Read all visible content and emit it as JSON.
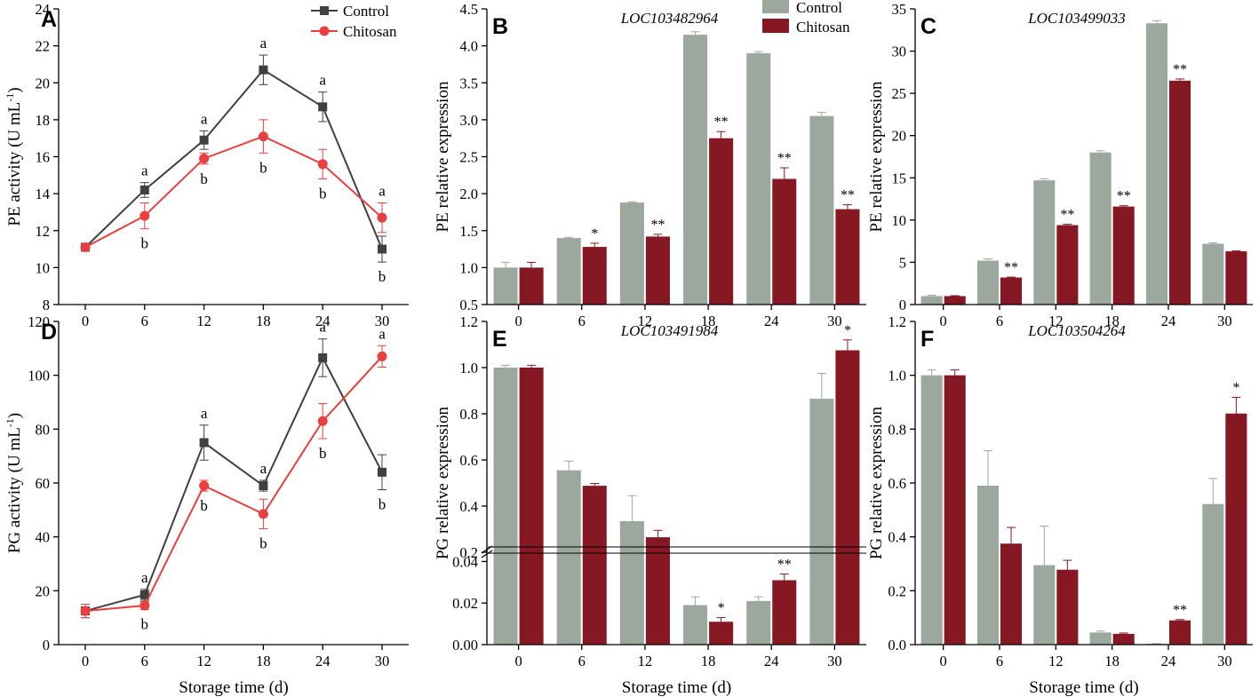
{
  "colors": {
    "control_line": "#404040",
    "chitosan_line": "#e8403f",
    "control_bar": "#9ca89e",
    "chitosan_bar": "#861823",
    "axis": "#000000"
  },
  "chart_data": [
    {
      "id": "A",
      "letter": "A",
      "type": "line",
      "title": "",
      "xlabel": "",
      "ylabel": "PE activity (U mL",
      "ylabel_sup": "-1",
      "ylabel_tail": ")",
      "x": [
        0,
        6,
        12,
        18,
        24,
        30
      ],
      "xticks": [
        "0",
        "6",
        "12",
        "18",
        "24",
        "30"
      ],
      "ylim": [
        8,
        24
      ],
      "yticks": [
        "8",
        "10",
        "12",
        "14",
        "16",
        "18",
        "20",
        "22",
        "24"
      ],
      "legend": {
        "position": "top-right",
        "entries": [
          "Control",
          "Chitosan"
        ]
      },
      "series": [
        {
          "name": "Control",
          "marker": "square",
          "values": [
            11.1,
            14.2,
            16.9,
            20.7,
            18.7,
            11.0
          ],
          "errors": [
            0.2,
            0.4,
            0.5,
            0.8,
            0.8,
            0.7
          ],
          "letters": [
            "",
            "a",
            "a",
            "a",
            "a",
            "b"
          ],
          "letter_pos": [
            "",
            "above",
            "above",
            "above",
            "above",
            "below"
          ]
        },
        {
          "name": "Chitosan",
          "marker": "circle",
          "values": [
            11.1,
            12.8,
            15.9,
            17.1,
            15.6,
            12.7
          ],
          "errors": [
            0.2,
            0.7,
            0.3,
            0.9,
            0.8,
            0.8
          ],
          "letters": [
            "",
            "b",
            "b",
            "b",
            "b",
            "a"
          ],
          "letter_pos": [
            "",
            "below",
            "below",
            "below",
            "below",
            "above"
          ]
        }
      ]
    },
    {
      "id": "B",
      "letter": "B",
      "type": "bar",
      "title": "LOC103482964",
      "xlabel": "",
      "ylabel": "PE relative expression",
      "categories": [
        "0",
        "6",
        "12",
        "18",
        "24",
        "30"
      ],
      "ylim": [
        0.5,
        4.5
      ],
      "yticks": [
        "0.5",
        "1.0",
        "1.5",
        "2.0",
        "2.5",
        "3.0",
        "3.5",
        "4.0",
        "4.5"
      ],
      "legend": {
        "position": "top-right",
        "entries": [
          "Control",
          "Chitosan"
        ]
      },
      "series": [
        {
          "name": "Control",
          "values": [
            1.0,
            1.4,
            1.88,
            4.15,
            3.9,
            3.05
          ],
          "errors": [
            0.07,
            0.01,
            0.01,
            0.04,
            0.02,
            0.05
          ]
        },
        {
          "name": "Chitosan",
          "values": [
            1.0,
            1.28,
            1.42,
            2.75,
            2.2,
            1.79
          ],
          "errors": [
            0.07,
            0.05,
            0.03,
            0.09,
            0.15,
            0.06
          ],
          "marks": [
            "",
            "*",
            "**",
            "**",
            "**",
            "**"
          ]
        }
      ]
    },
    {
      "id": "C",
      "letter": "C",
      "type": "bar",
      "title": "LOC103499033",
      "xlabel": "",
      "ylabel": "PE relative expression",
      "categories": [
        "0",
        "6",
        "12",
        "18",
        "24",
        "30"
      ],
      "ylim": [
        0,
        35
      ],
      "yticks": [
        "0",
        "5",
        "10",
        "15",
        "20",
        "25",
        "30",
        "35"
      ],
      "series": [
        {
          "name": "Control",
          "values": [
            1.0,
            5.2,
            14.7,
            18.0,
            33.3,
            7.2
          ],
          "errors": [
            0.1,
            0.2,
            0.2,
            0.2,
            0.3,
            0.1
          ]
        },
        {
          "name": "Chitosan",
          "values": [
            1.0,
            3.2,
            9.4,
            11.6,
            26.5,
            6.3
          ],
          "errors": [
            0.05,
            0.05,
            0.1,
            0.1,
            0.2,
            0.05
          ],
          "marks": [
            "",
            "**",
            "**",
            "**",
            "**",
            ""
          ]
        }
      ]
    },
    {
      "id": "D",
      "letter": "D",
      "type": "line",
      "title": "",
      "xlabel": "Storage time (d)",
      "ylabel": "PG activity (U mL",
      "ylabel_sup": "-1",
      "ylabel_tail": ")",
      "x": [
        0,
        6,
        12,
        18,
        24,
        30
      ],
      "xticks": [
        "0",
        "6",
        "12",
        "18",
        "24",
        "30"
      ],
      "ylim": [
        0,
        120
      ],
      "yticks": [
        "0",
        "20",
        "40",
        "60",
        "80",
        "100",
        "120"
      ],
      "series": [
        {
          "name": "Control",
          "marker": "square",
          "values": [
            12.5,
            18.5,
            75.0,
            59.0,
            106.5,
            64.0
          ],
          "errors": [
            2.5,
            2.0,
            6.5,
            2.0,
            7.0,
            6.5
          ],
          "letters": [
            "",
            "a",
            "a",
            "a",
            "a",
            "b"
          ],
          "letter_pos": [
            "",
            "above",
            "above",
            "above",
            "above",
            "below"
          ]
        },
        {
          "name": "Chitosan",
          "marker": "circle",
          "values": [
            12.5,
            14.5,
            59.0,
            48.5,
            83.0,
            107.0
          ],
          "errors": [
            2.5,
            1.5,
            2.0,
            5.5,
            6.5,
            4.0
          ],
          "letters": [
            "",
            "b",
            "b",
            "b",
            "b",
            "a"
          ],
          "letter_pos": [
            "",
            "below",
            "below",
            "below",
            "below",
            "above"
          ]
        }
      ]
    },
    {
      "id": "E",
      "letter": "E",
      "type": "bar",
      "title": "LOC103491984",
      "xlabel": "Storage time (d)",
      "ylabel": "PG relative expression",
      "categories": [
        "0",
        "6",
        "12",
        "18",
        "24",
        "30"
      ],
      "axis_break": {
        "lower_range": [
          0,
          0.05
        ],
        "upper_range": [
          0.2,
          1.2
        ]
      },
      "yticks_lower": [
        "0.00",
        "0.02",
        "0.04"
      ],
      "yticks_upper": [
        "0.2",
        "0.4",
        "0.6",
        "0.8",
        "1.0",
        "1.2"
      ],
      "series": [
        {
          "name": "Control",
          "values": [
            1.0,
            0.555,
            0.335,
            0.019,
            0.021,
            0.865
          ],
          "errors": [
            0.01,
            0.04,
            0.11,
            0.004,
            0.002,
            0.11
          ]
        },
        {
          "name": "Chitosan",
          "values": [
            1.0,
            0.488,
            0.265,
            0.011,
            0.031,
            1.075
          ],
          "errors": [
            0.01,
            0.01,
            0.03,
            0.002,
            0.003,
            0.045
          ],
          "marks": [
            "",
            "",
            "",
            "*",
            "**",
            "*"
          ]
        }
      ]
    },
    {
      "id": "F",
      "letter": "F",
      "type": "bar",
      "title": "LOC103504264",
      "xlabel": "Storage time (d)",
      "ylabel": "PG relative expression",
      "categories": [
        "0",
        "6",
        "12",
        "18",
        "24",
        "30"
      ],
      "ylim": [
        0,
        1.2
      ],
      "yticks": [
        "0.0",
        "0.2",
        "0.4",
        "0.6",
        "0.8",
        "1.0",
        "1.2"
      ],
      "series": [
        {
          "name": "Control",
          "values": [
            1.0,
            0.59,
            0.295,
            0.045,
            0.003,
            0.522
          ],
          "errors": [
            0.02,
            0.13,
            0.145,
            0.005,
            0.001,
            0.095
          ]
        },
        {
          "name": "Chitosan",
          "values": [
            1.0,
            0.375,
            0.278,
            0.04,
            0.09,
            0.858
          ],
          "errors": [
            0.02,
            0.06,
            0.035,
            0.003,
            0.003,
            0.06
          ],
          "marks": [
            "",
            "",
            "",
            "",
            "**",
            "*"
          ]
        }
      ]
    }
  ]
}
